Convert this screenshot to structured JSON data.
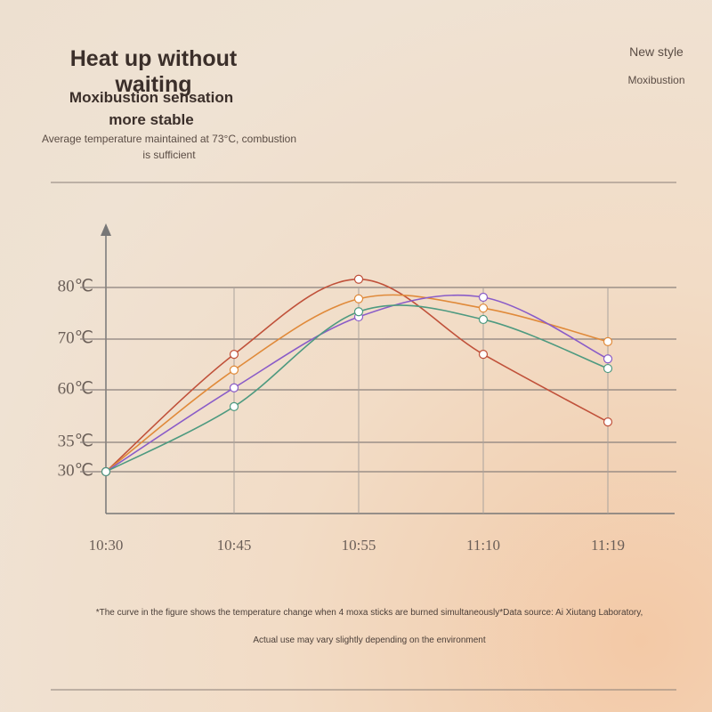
{
  "chart_data": {
    "type": "line",
    "title": "Heat up without waiting",
    "subtitle": "Moxibustion sensation more stable",
    "description": "Average temperature maintained at 73°C, combustion is sufficient",
    "badge": [
      "New style",
      "Moxibustion"
    ],
    "footnotes": [
      "*The curve in the figure shows the temperature change when 4 moxa sticks are burned simultaneously*Data source: Ai Xiutang Laboratory,",
      "Actual use may vary slightly depending on the environment"
    ],
    "categories": [
      "10:30",
      "10:45",
      "10:55",
      "11:10",
      "11:19"
    ],
    "yticks": [
      {
        "value": 30,
        "label": "30℃"
      },
      {
        "value": 35,
        "label": "35℃"
      },
      {
        "value": 60,
        "label": "60℃"
      },
      {
        "value": 70,
        "label": "70℃"
      },
      {
        "value": 80,
        "label": "80℃"
      }
    ],
    "grid": true,
    "series": [
      {
        "color": "#c0513a",
        "values": [
          30,
          67,
          81.6,
          67,
          44.7
        ]
      },
      {
        "color": "#e08a3a",
        "values": [
          30,
          63.9,
          77.8,
          76,
          69.5
        ]
      },
      {
        "color": "#8a5cc8",
        "values": [
          30,
          60.4,
          74.3,
          78.1,
          66.1
        ]
      },
      {
        "color": "#4e9a80",
        "values": [
          30,
          52,
          75.3,
          73.8,
          64.2
        ]
      }
    ]
  }
}
